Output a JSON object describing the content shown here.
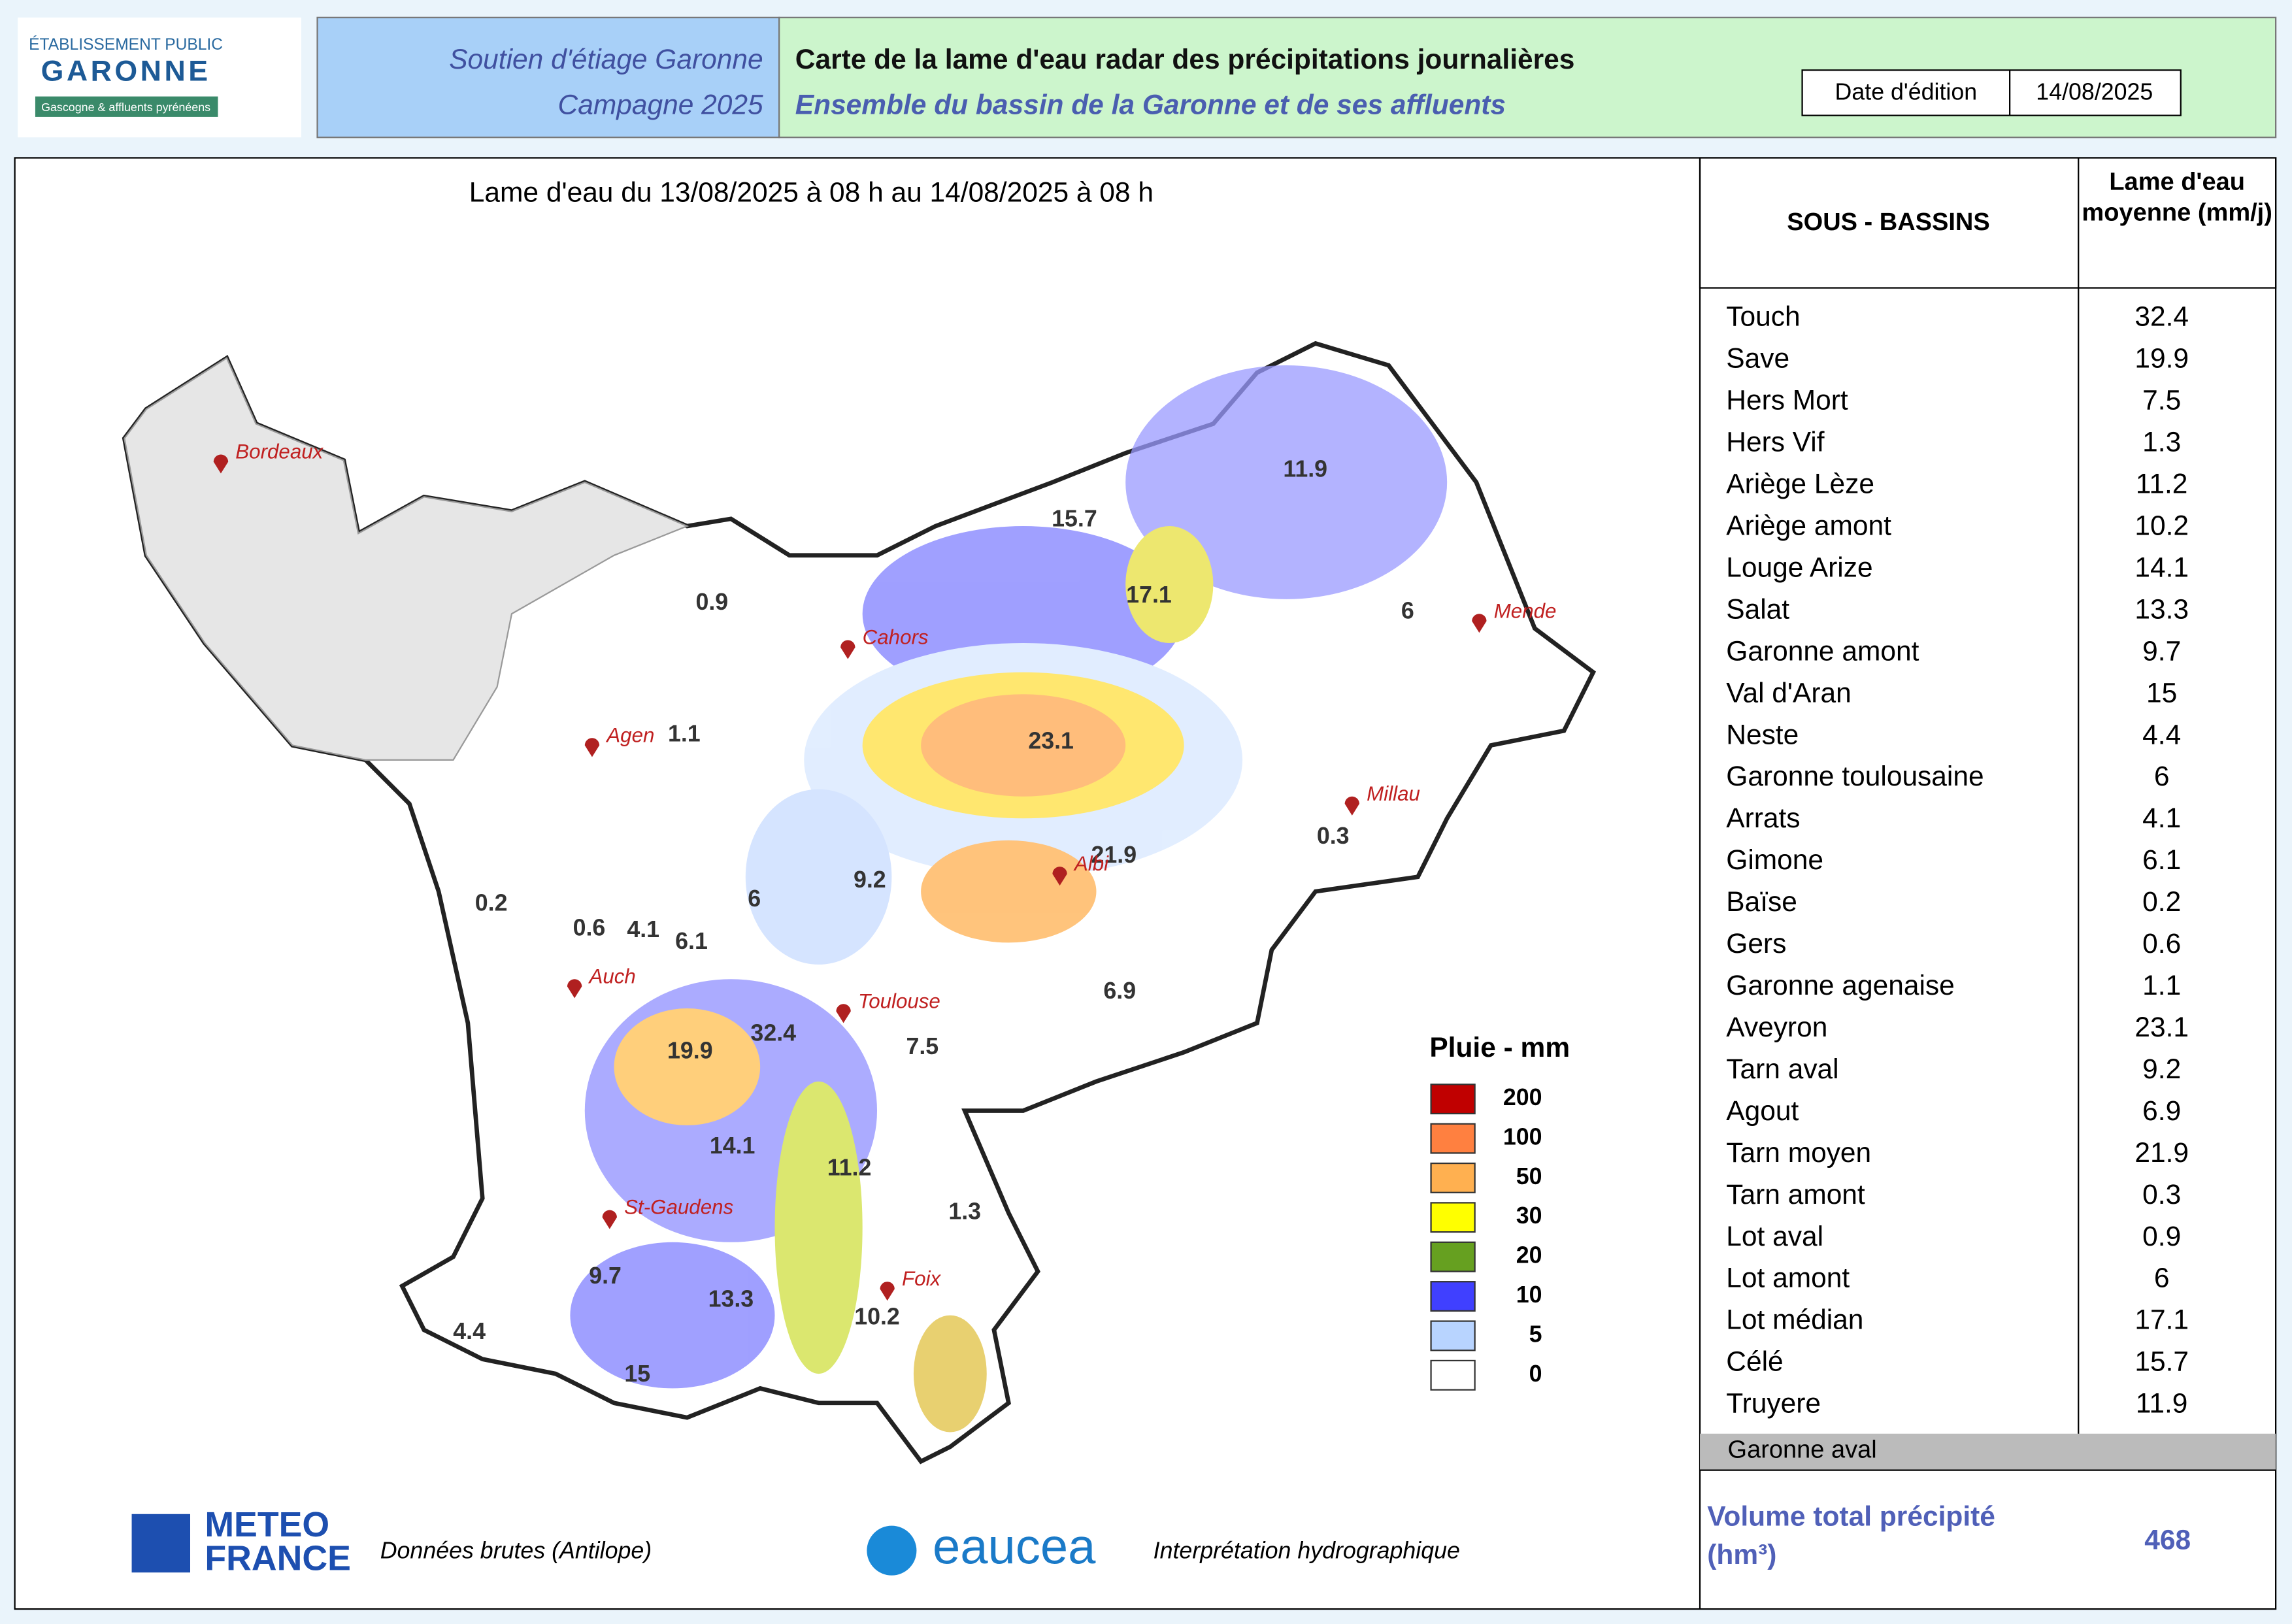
{
  "header": {
    "logo": {
      "line1": "ÉTABLISSEMENT PUBLIC",
      "line2": "GARONNE",
      "line3": "Gascogne & affluents pyrénéens"
    },
    "campaign": {
      "line1": "Soutien d'étiage Garonne",
      "line2": "Campagne 2025"
    },
    "title": "Carte de la lame d'eau radar des précipitations journalières",
    "subtitle": "Ensemble du bassin de la Garonne et de ses affluents",
    "date_label": "Date d'édition",
    "date_value": "14/08/2025"
  },
  "map": {
    "period": "Lame d'eau du 13/08/2025  à 08 h au  14/08/2025  à 08 h",
    "zone_labels": [
      0.9,
      1.1,
      0.2,
      0.6,
      4.1,
      6.1,
      6,
      9.2,
      23.1,
      21.9,
      15.7,
      17.1,
      11.9,
      6,
      0.3,
      6.9,
      7.5,
      32.4,
      19.9,
      14.1,
      11.2,
      1.3,
      9.7,
      13.3,
      10.2,
      4.4,
      15
    ],
    "cities": [
      "Bordeaux",
      "Cahors",
      "Agen",
      "Mende",
      "Millau",
      "Albi",
      "Auch",
      "Toulouse",
      "St-Gaudens",
      "Foix"
    ],
    "legend": {
      "title": "Pluie - mm",
      "entries": [
        {
          "label": 200,
          "color": "#c00000"
        },
        {
          "label": 100,
          "color": "#ff8040"
        },
        {
          "label": 50,
          "color": "#ffb050"
        },
        {
          "label": 30,
          "color": "#ffff00"
        },
        {
          "label": 20,
          "color": "#66a020"
        },
        {
          "label": 10,
          "color": "#4040ff"
        },
        {
          "label": 5,
          "color": "#b8d4ff"
        },
        {
          "label": 0,
          "color": "#ffffff"
        }
      ]
    }
  },
  "table": {
    "headers": [
      "SOUS - BASSINS",
      "Lame d'eau moyenne (mm/j)"
    ],
    "rows": [
      [
        "Touch",
        32.4
      ],
      [
        "Save",
        19.9
      ],
      [
        "Hers Mort",
        7.5
      ],
      [
        "Hers Vif",
        1.3
      ],
      [
        "Ariège Lèze",
        11.2
      ],
      [
        "Ariège amont",
        10.2
      ],
      [
        "Louge Arize",
        14.1
      ],
      [
        "Salat",
        13.3
      ],
      [
        "Garonne amont",
        9.7
      ],
      [
        "Val d'Aran",
        15
      ],
      [
        "Neste",
        4.4
      ],
      [
        "Garonne toulousaine",
        6
      ],
      [
        "Arrats",
        4.1
      ],
      [
        "Gimone",
        6.1
      ],
      [
        "Baïse",
        0.2
      ],
      [
        "Gers",
        0.6
      ],
      [
        "Garonne agenaise",
        1.1
      ],
      [
        "Aveyron",
        23.1
      ],
      [
        "Tarn aval",
        9.2
      ],
      [
        "Agout",
        6.9
      ],
      [
        "Tarn moyen",
        21.9
      ],
      [
        "Tarn amont",
        0.3
      ],
      [
        "Lot aval",
        0.9
      ],
      [
        "Lot amont",
        6
      ],
      [
        "Lot médian",
        17.1
      ],
      [
        "Célé",
        15.7
      ],
      [
        "Truyere",
        11.9
      ]
    ],
    "footer_row": "Garonne aval",
    "total_label": "Volume total précipité (hm³)",
    "total_value": 468
  },
  "footer": {
    "meteo1": "METEO",
    "meteo2": "FRANCE",
    "meteo_credit": "Données brutes (Antilope)",
    "eaucea": "eaucea",
    "eaucea_credit": "Interprétation hydrographique"
  }
}
